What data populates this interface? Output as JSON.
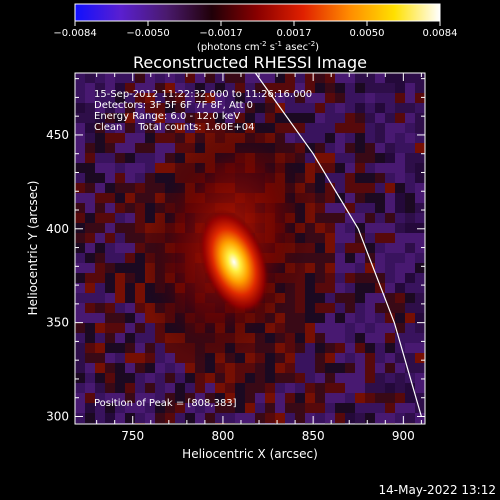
{
  "chart_data": {
    "type": "heatmap",
    "title": "Reconstructed RHESSI Image",
    "xlabel": "Heliocentric X (arcsec)",
    "ylabel": "Heliocentric Y (arcsec)",
    "xlim": [
      718,
      912
    ],
    "ylim": [
      296,
      483
    ],
    "x_ticks": [
      750,
      800,
      850,
      900
    ],
    "y_ticks": [
      300,
      350,
      400,
      450
    ],
    "colorbar": {
      "min": -0.0084,
      "max": 0.0084,
      "ticks": [
        "-0.0084",
        "-0.0050",
        "-0.0017",
        "0.0017",
        "0.0050",
        "0.0084"
      ],
      "unit_label": "(photons cm",
      "unit_exp1": "-2",
      "unit_mid": " s",
      "unit_exp2": "-1",
      "unit_mid2": " asec",
      "unit_exp3": "-2",
      "unit_end": ")",
      "colors": [
        "#1010ff",
        "#5a1fd0",
        "#4a1a6e",
        "#200008",
        "#8a0000",
        "#e02000",
        "#ff8a00",
        "#ffe000",
        "#ffffff"
      ]
    },
    "info_lines": [
      "15-Sep-2012 11:22:32.000 to 11:26:16.000",
      "Detectors: 3F 5F 6F 7F 8F, Att 0",
      "Energy Range: 6.0 - 12.0 keV",
      "Clean     Total counts: 1.60E+04"
    ],
    "peak_label": "Position of Peak = [808,383]",
    "peak": {
      "x": 808,
      "y": 383,
      "value": 0.0084
    },
    "limb_points": [
      [
        818,
        483
      ],
      [
        850,
        440
      ],
      [
        875,
        400
      ],
      [
        895,
        350
      ],
      [
        910,
        300
      ]
    ],
    "footer_timestamp": "14-May-2022 13:12"
  }
}
